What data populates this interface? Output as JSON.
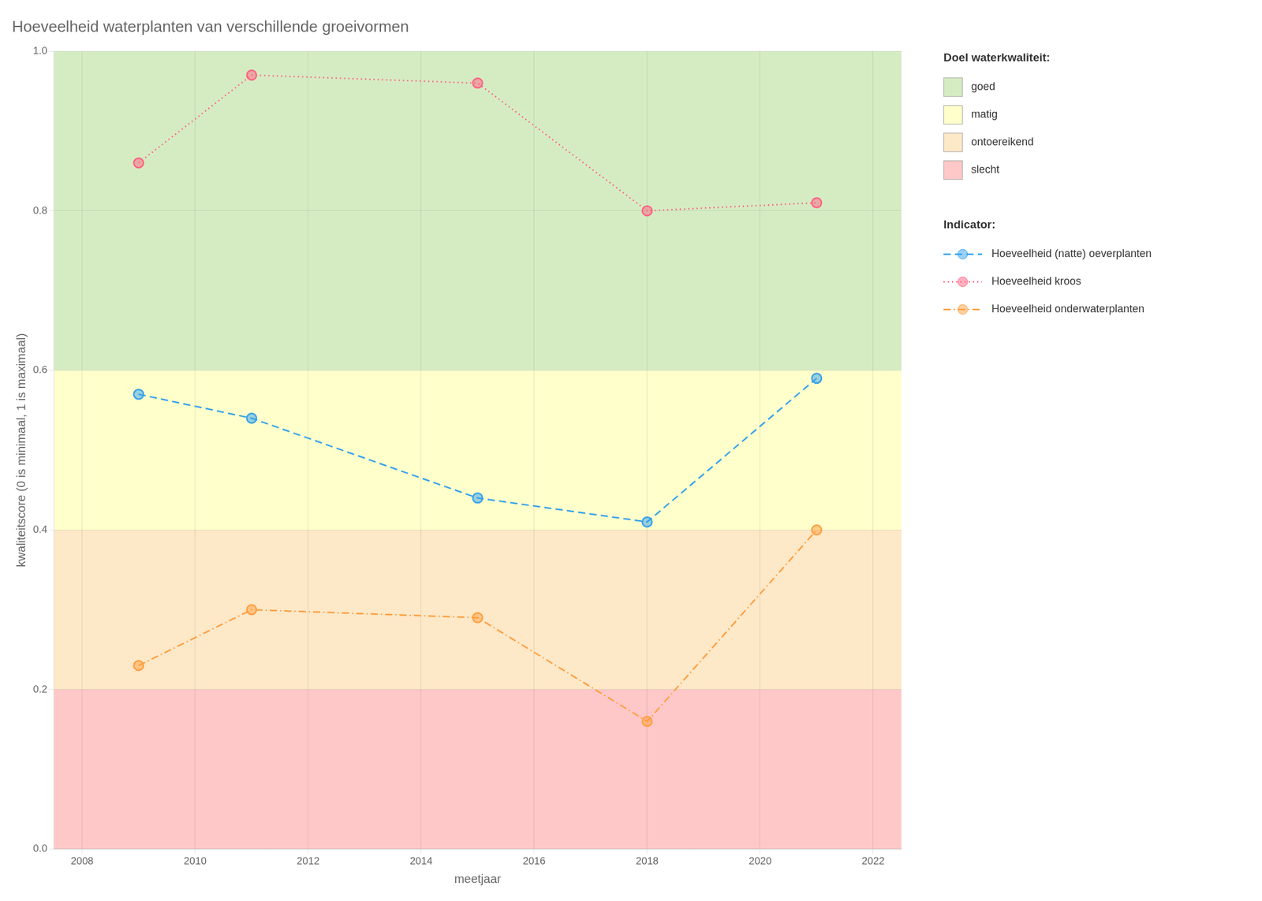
{
  "chart_data": {
    "type": "line",
    "title": "Hoeveelheid waterplanten van verschillende groeivormen",
    "x_label": "meetjaar",
    "y_label": "kwaliteitscore (0 is minimaal, 1 is maximaal)",
    "xlim": [
      2007.5,
      2022.5
    ],
    "ylim": [
      0.0,
      1.0
    ],
    "xticks": [
      2008,
      2010,
      2012,
      2014,
      2016,
      2018,
      2020,
      2022
    ],
    "yticks": [
      {
        "value": 0.0,
        "label": "0.0"
      },
      0.2,
      0.4,
      0.6,
      0.8,
      {
        "value": 1.0,
        "label": "1.0"
      }
    ],
    "grid": true,
    "legend": "right",
    "x": [
      2009,
      2011,
      2015,
      2018,
      2021
    ],
    "series": [
      {
        "name": "Hoeveelheid (natte) oeverplanten",
        "values": [
          0.57,
          0.54,
          0.44,
          0.41,
          0.59
        ],
        "line_style": "dashed",
        "marker": "circle"
      },
      {
        "name": "Hoeveelheid kroos",
        "values": [
          0.86,
          0.97,
          0.96,
          0.8,
          0.81
        ],
        "line_style": "dotted",
        "marker": "circle"
      },
      {
        "name": "Hoeveelheid onderwaterplanten",
        "values": [
          0.23,
          0.3,
          0.29,
          0.16,
          0.4
        ],
        "line_style": "dashdot",
        "marker": "circle"
      }
    ],
    "zone_legend_title": "Doel waterkwaliteit:",
    "series_legend_title": "Indicator:",
    "zones": [
      {
        "name": "goed",
        "ymin": 0.6,
        "ymax": 1.0,
        "color": "#d5ecc2"
      },
      {
        "name": "matig",
        "ymin": 0.4,
        "ymax": 0.6,
        "color": "#ffffcc"
      },
      {
        "name": "ontoereikend",
        "ymin": 0.2,
        "ymax": 0.4,
        "color": "#fde8c8"
      },
      {
        "name": "slecht",
        "ymin": 0.0,
        "ymax": 0.2,
        "color": "#ffc8c8"
      }
    ]
  }
}
